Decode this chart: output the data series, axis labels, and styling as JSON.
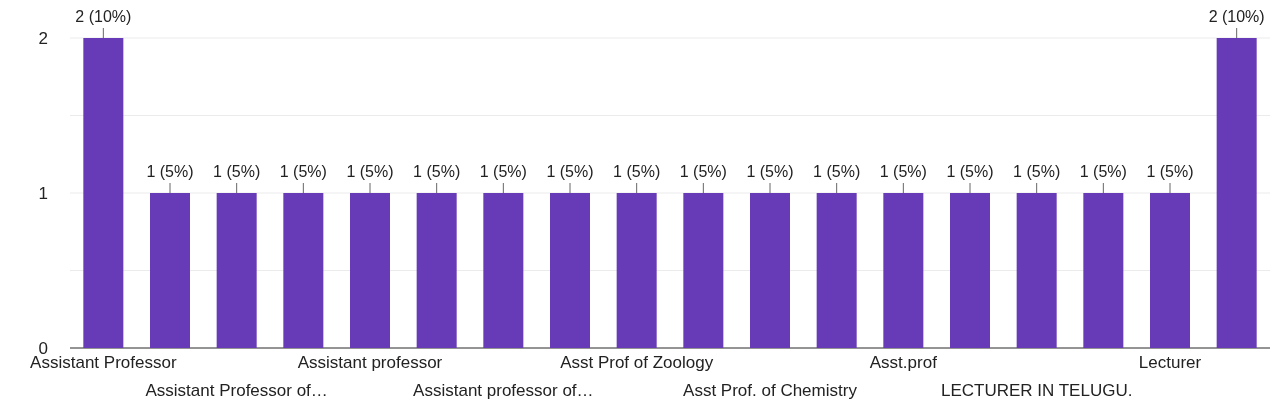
{
  "chart_data": {
    "type": "bar",
    "categories": [
      "Assistant Professor",
      null,
      "Assistant Professor of…",
      null,
      "Assistant professor",
      null,
      "Assistant professor of…",
      null,
      "Asst Prof of Zoology",
      null,
      "Asst Prof. of Chemistry",
      null,
      "Asst.prof",
      null,
      "LECTURER IN TELUGU.",
      null,
      "Lecturer",
      null
    ],
    "values": [
      2,
      1,
      1,
      1,
      1,
      1,
      1,
      1,
      1,
      1,
      1,
      1,
      1,
      1,
      1,
      1,
      1,
      2
    ],
    "value_labels": [
      "2 (10%)",
      "1 (5%)",
      "1 (5%)",
      "1 (5%)",
      "1 (5%)",
      "1 (5%)",
      "1 (5%)",
      "1 (5%)",
      "1 (5%)",
      "1 (5%)",
      "1 (5%)",
      "1 (5%)",
      "1 (5%)",
      "1 (5%)",
      "1 (5%)",
      "1 (5%)",
      "1 (5%)",
      "2 (10%)"
    ],
    "color": "#673ab7",
    "ylim": [
      0,
      2
    ],
    "yticks": [
      0,
      {
        "value": 0.5,
        "label": null
      },
      1,
      {
        "value": 1.5,
        "label": null
      },
      2
    ],
    "grid": true
  }
}
